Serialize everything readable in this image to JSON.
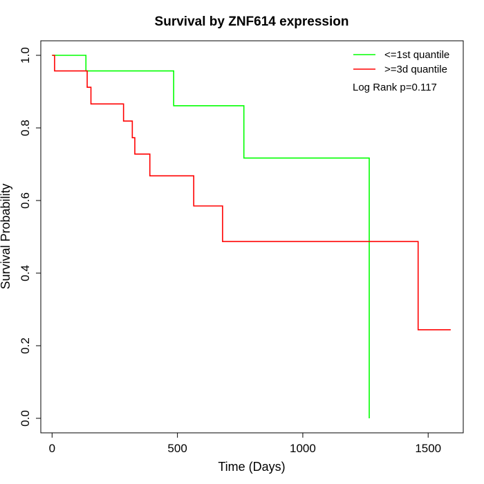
{
  "chart_data": {
    "type": "line",
    "title": "Survival by ZNF614 expression",
    "xlabel": "Time (Days)",
    "ylabel": "Survival Probability",
    "xlim": [
      -45,
      1640
    ],
    "ylim": [
      -0.04,
      1.04
    ],
    "x_ticks": [
      0,
      500,
      1000,
      1500
    ],
    "y_ticks": [
      0.0,
      0.2,
      0.4,
      0.6,
      0.8,
      1.0
    ],
    "x_tick_labels": [
      "0",
      "500",
      "1000",
      "1500"
    ],
    "y_tick_labels": [
      "0.0",
      "0.2",
      "0.4",
      "0.6",
      "0.8",
      "1.0"
    ],
    "grid": false,
    "legend_position": "top-right",
    "annotation": "Log Rank p=0.117",
    "series": [
      {
        "name": "<=1st quantile",
        "color": "#00ff00",
        "step_type": "post",
        "x": [
          0,
          135,
          485,
          765,
          1265,
          1265
        ],
        "y": [
          1.0,
          0.957,
          0.861,
          0.717,
          0.717,
          0.0
        ]
      },
      {
        "name": ">=3d quantile",
        "color": "#ff0000",
        "step_type": "post",
        "x": [
          0,
          10,
          140,
          155,
          285,
          320,
          330,
          390,
          565,
          680,
          1460,
          1590
        ],
        "y": [
          1.0,
          0.957,
          0.912,
          0.866,
          0.819,
          0.773,
          0.728,
          0.668,
          0.585,
          0.487,
          0.244,
          0.244
        ]
      }
    ]
  }
}
